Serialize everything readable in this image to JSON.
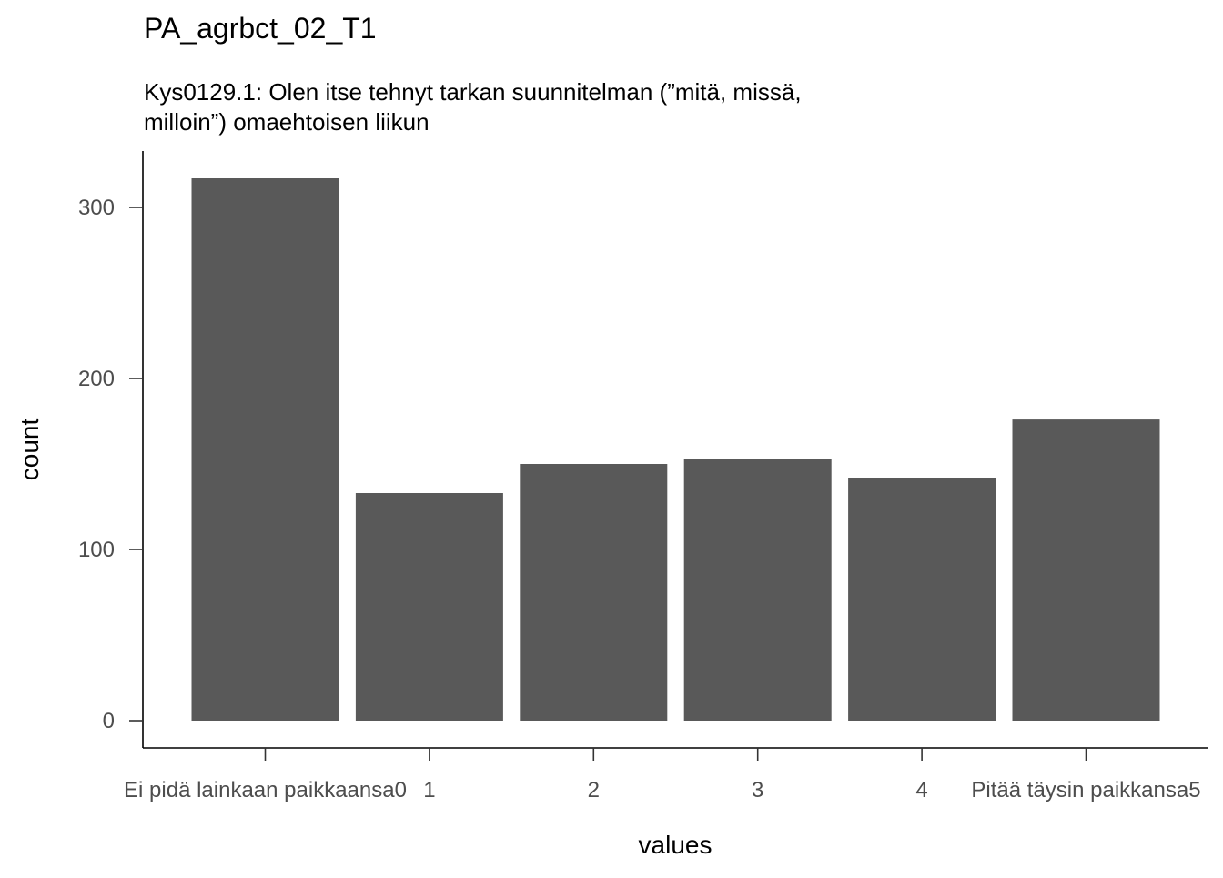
{
  "chart_data": {
    "type": "bar",
    "title": "PA_agrbct_02_T1",
    "subtitle_lines": [
      "Kys0129.1: Olen itse tehnyt tarkan suunnitelman (”mitä, missä,",
      "milloin”) omaehtoisen liikun"
    ],
    "xlabel": "values",
    "ylabel": "count",
    "categories": [
      "Ei pidä lainkaan paikkaansa0",
      "1",
      "2",
      "3",
      "4",
      "Pitää täysin paikkansa5"
    ],
    "values": [
      317,
      133,
      150,
      153,
      142,
      176
    ],
    "ylim": [
      0,
      330
    ],
    "yticks": [
      0,
      100,
      200,
      300
    ],
    "ytick_labels": [
      "0",
      "100",
      "200",
      "300"
    ],
    "grid": false,
    "legend": "none",
    "bar_color": "#595959"
  }
}
